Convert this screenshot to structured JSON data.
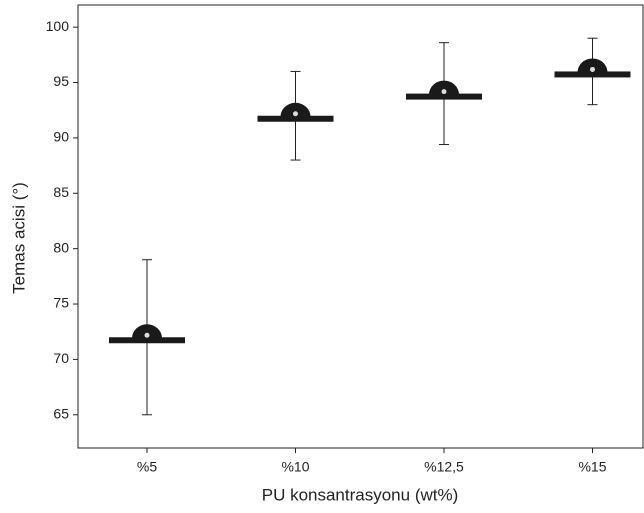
{
  "chart_data": {
    "type": "errorbar",
    "xlabel": "PU konsantrasyonu (wt%)",
    "ylabel": "Temas acisi (°)",
    "categories": [
      "%5",
      "%10",
      "%12,5",
      "%15"
    ],
    "values": [
      72,
      92,
      94,
      96
    ],
    "errors": [
      7,
      4,
      4.6,
      3
    ],
    "color": "#1a1a1a",
    "ylim": [
      62,
      102
    ],
    "yticks": [
      65,
      70,
      75,
      80,
      85,
      90,
      95,
      100
    ]
  }
}
